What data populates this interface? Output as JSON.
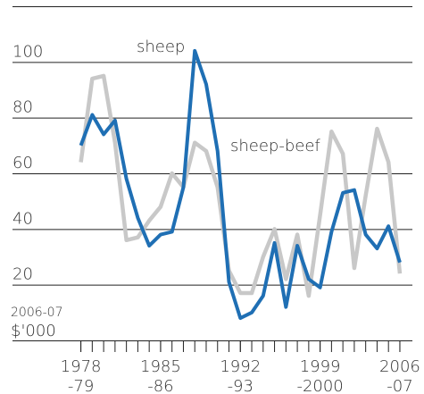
{
  "chart_data": {
    "type": "line",
    "annotations": [
      "sheep",
      "sheep-beef"
    ],
    "y_label": [
      "2006-07",
      "$'000"
    ],
    "x": [
      1978,
      1979,
      1980,
      1981,
      1982,
      1983,
      1984,
      1985,
      1986,
      1987,
      1988,
      1989,
      1990,
      1991,
      1992,
      1993,
      1994,
      1995,
      1996,
      1997,
      1998,
      1999,
      2000,
      2001,
      2002,
      2003,
      2004,
      2005,
      2006
    ],
    "series": [
      {
        "name": "sheep-beef",
        "color": "#c8c8c8",
        "values": [
          64,
          94,
          95,
          71,
          36,
          37,
          43,
          48,
          60,
          55,
          71,
          68,
          55,
          25,
          17,
          17,
          30,
          40,
          22,
          38,
          16,
          45,
          75,
          67,
          26,
          52,
          76,
          64,
          24
        ]
      },
      {
        "name": "sheep",
        "color": "#1f6fb4",
        "values": [
          70,
          81,
          74,
          79,
          58,
          44,
          34,
          38,
          39,
          55,
          104,
          92,
          68,
          21,
          8,
          10,
          16,
          35,
          12,
          34,
          22,
          19,
          39,
          53,
          54,
          38,
          33,
          41,
          28
        ]
      }
    ],
    "xlim": [
      1972,
      2007.1
    ],
    "xticks": [
      {
        "value": 1978,
        "label": "1978"
      },
      {
        "value": 1985,
        "label": "1985"
      },
      {
        "value": 1992,
        "label": "1992"
      },
      {
        "value": 1999,
        "label": "1999"
      },
      {
        "value": 2006,
        "label": "2006"
      }
    ],
    "x_sublabels": [
      "-79",
      "-86",
      "-93",
      "-2000",
      "-07"
    ],
    "ylim": [
      0,
      120
    ],
    "yticks": [
      20,
      40,
      60,
      80,
      100
    ],
    "grid": true
  }
}
